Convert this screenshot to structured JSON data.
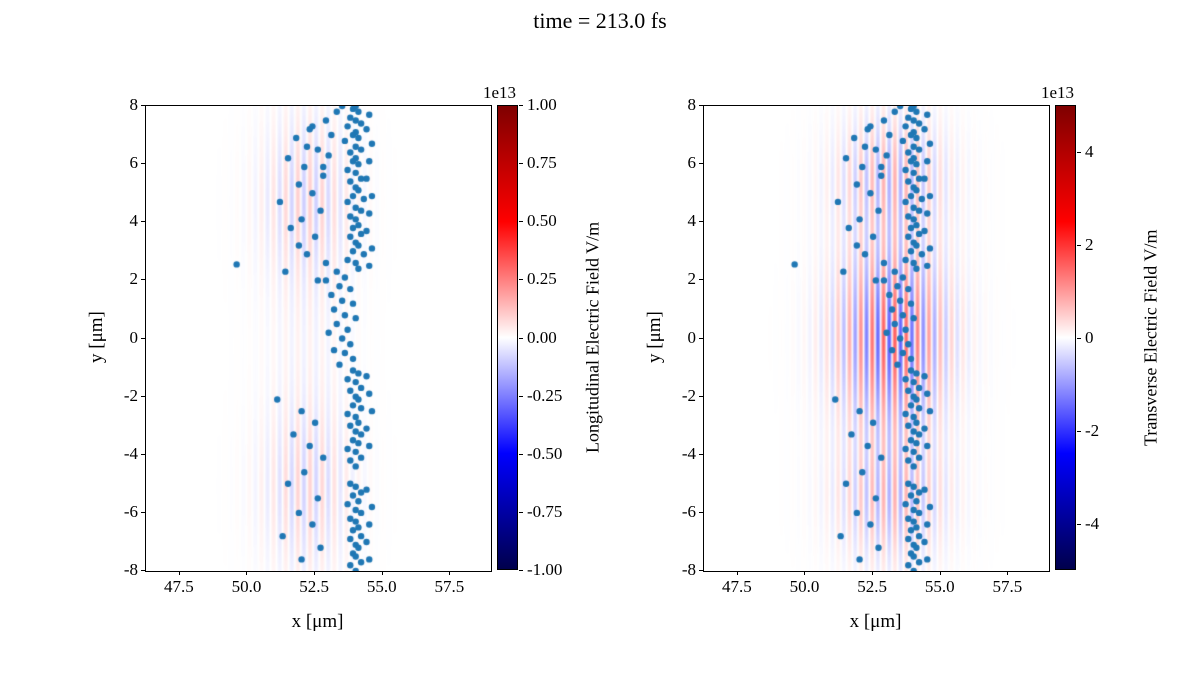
{
  "title": "time = 213.0 fs",
  "particle_color": "#1f77b4",
  "particles": [
    [
      53.9,
      7.9
    ],
    [
      54.1,
      7.8
    ],
    [
      53.8,
      7.6
    ],
    [
      54.0,
      7.5
    ],
    [
      54.2,
      7.4
    ],
    [
      53.7,
      7.3
    ],
    [
      54.0,
      7.1
    ],
    [
      53.9,
      7.0
    ],
    [
      54.1,
      6.9
    ],
    [
      53.6,
      6.8
    ],
    [
      54.0,
      6.6
    ],
    [
      54.2,
      6.5
    ],
    [
      53.8,
      6.4
    ],
    [
      54.0,
      6.2
    ],
    [
      53.9,
      6.1
    ],
    [
      54.1,
      6.0
    ],
    [
      53.7,
      5.8
    ],
    [
      54.0,
      5.7
    ],
    [
      54.2,
      5.5
    ],
    [
      53.8,
      5.4
    ],
    [
      54.0,
      5.2
    ],
    [
      54.1,
      5.1
    ],
    [
      53.9,
      4.9
    ],
    [
      54.3,
      4.8
    ],
    [
      53.7,
      4.7
    ],
    [
      54.0,
      4.5
    ],
    [
      54.2,
      4.4
    ],
    [
      53.8,
      4.2
    ],
    [
      54.0,
      4.1
    ],
    [
      54.1,
      3.9
    ],
    [
      53.9,
      3.8
    ],
    [
      54.2,
      3.6
    ],
    [
      53.8,
      3.5
    ],
    [
      54.0,
      3.3
    ],
    [
      54.1,
      3.2
    ],
    [
      53.9,
      3.0
    ],
    [
      54.3,
      2.9
    ],
    [
      53.7,
      2.7
    ],
    [
      54.0,
      2.6
    ],
    [
      54.1,
      2.4
    ],
    [
      53.3,
      2.3
    ],
    [
      53.6,
      2.1
    ],
    [
      52.9,
      2.0
    ],
    [
      53.4,
      1.8
    ],
    [
      53.8,
      1.7
    ],
    [
      53.1,
      1.5
    ],
    [
      53.5,
      1.3
    ],
    [
      53.9,
      1.2
    ],
    [
      53.2,
      1.0
    ],
    [
      53.6,
      0.8
    ],
    [
      54.0,
      0.7
    ],
    [
      53.3,
      0.5
    ],
    [
      53.7,
      0.3
    ],
    [
      53.0,
      0.2
    ],
    [
      53.5,
      0.0
    ],
    [
      53.8,
      -0.2
    ],
    [
      53.2,
      -0.4
    ],
    [
      53.6,
      -0.5
    ],
    [
      53.9,
      -0.7
    ],
    [
      53.4,
      -0.9
    ],
    [
      53.9,
      -1.1
    ],
    [
      54.1,
      -1.2
    ],
    [
      53.7,
      -1.4
    ],
    [
      54.0,
      -1.5
    ],
    [
      54.2,
      -1.7
    ],
    [
      53.8,
      -1.8
    ],
    [
      54.0,
      -2.0
    ],
    [
      54.1,
      -2.1
    ],
    [
      53.9,
      -2.3
    ],
    [
      54.2,
      -2.4
    ],
    [
      53.7,
      -2.6
    ],
    [
      54.0,
      -2.7
    ],
    [
      54.1,
      -2.9
    ],
    [
      53.8,
      -3.0
    ],
    [
      54.0,
      -3.2
    ],
    [
      54.2,
      -3.3
    ],
    [
      53.9,
      -3.5
    ],
    [
      54.1,
      -3.6
    ],
    [
      53.7,
      -3.8
    ],
    [
      54.0,
      -3.9
    ],
    [
      54.2,
      -4.1
    ],
    [
      53.8,
      -4.2
    ],
    [
      54.0,
      -4.4
    ],
    [
      53.8,
      -5.0
    ],
    [
      54.0,
      -5.1
    ],
    [
      54.2,
      -5.3
    ],
    [
      53.9,
      -5.4
    ],
    [
      54.1,
      -5.6
    ],
    [
      53.7,
      -5.7
    ],
    [
      54.0,
      -5.9
    ],
    [
      54.2,
      -6.0
    ],
    [
      53.8,
      -6.2
    ],
    [
      54.0,
      -6.3
    ],
    [
      54.1,
      -6.5
    ],
    [
      53.9,
      -6.6
    ],
    [
      54.2,
      -6.8
    ],
    [
      53.8,
      -6.9
    ],
    [
      54.0,
      -7.1
    ],
    [
      54.1,
      -7.2
    ],
    [
      53.9,
      -7.4
    ],
    [
      54.0,
      -7.5
    ],
    [
      54.2,
      -7.7
    ],
    [
      53.8,
      -7.8
    ],
    [
      54.0,
      -8.0
    ],
    [
      52.3,
      7.2
    ],
    [
      51.8,
      6.9
    ],
    [
      52.6,
      6.5
    ],
    [
      51.5,
      6.2
    ],
    [
      52.1,
      5.9
    ],
    [
      52.8,
      5.6
    ],
    [
      51.9,
      5.3
    ],
    [
      52.4,
      5.0
    ],
    [
      51.2,
      4.7
    ],
    [
      52.7,
      4.4
    ],
    [
      52.0,
      4.1
    ],
    [
      51.6,
      3.8
    ],
    [
      52.5,
      3.5
    ],
    [
      51.9,
      3.2
    ],
    [
      52.2,
      2.9
    ],
    [
      52.9,
      2.6
    ],
    [
      51.4,
      2.3
    ],
    [
      52.6,
      2.0
    ],
    [
      51.1,
      -2.1
    ],
    [
      52.0,
      -2.5
    ],
    [
      52.5,
      -2.9
    ],
    [
      51.7,
      -3.3
    ],
    [
      52.3,
      -3.7
    ],
    [
      52.8,
      -4.1
    ],
    [
      52.1,
      -4.6
    ],
    [
      51.5,
      -5.0
    ],
    [
      52.6,
      -5.5
    ],
    [
      51.9,
      -6.0
    ],
    [
      52.4,
      -6.4
    ],
    [
      51.3,
      -6.8
    ],
    [
      52.7,
      -7.2
    ],
    [
      52.0,
      -7.6
    ],
    [
      54.5,
      7.7
    ],
    [
      54.4,
      7.2
    ],
    [
      54.6,
      6.7
    ],
    [
      54.5,
      6.1
    ],
    [
      54.4,
      5.5
    ],
    [
      54.6,
      4.9
    ],
    [
      54.5,
      4.3
    ],
    [
      54.4,
      3.7
    ],
    [
      54.6,
      3.1
    ],
    [
      54.5,
      2.5
    ],
    [
      54.4,
      -1.3
    ],
    [
      54.5,
      -1.9
    ],
    [
      54.6,
      -2.5
    ],
    [
      54.4,
      -3.1
    ],
    [
      54.5,
      -3.7
    ],
    [
      54.4,
      -5.2
    ],
    [
      54.6,
      -5.8
    ],
    [
      54.5,
      -6.4
    ],
    [
      54.4,
      -7.0
    ],
    [
      54.5,
      -7.6
    ],
    [
      53.5,
      8.0
    ],
    [
      54.0,
      8.0
    ],
    [
      53.3,
      7.8
    ],
    [
      52.9,
      7.5
    ],
    [
      53.1,
      7.0
    ],
    [
      52.4,
      7.3
    ],
    [
      52.2,
      6.6
    ],
    [
      53.0,
      6.3
    ],
    [
      52.8,
      5.9
    ],
    [
      49.6,
      2.55
    ]
  ],
  "chart_data": [
    {
      "type": "heatmap",
      "subtype": "field-with-particle-scatter",
      "xlabel": "x [μm]",
      "ylabel": "y [μm]",
      "xlim": [
        46.25,
        59.0
      ],
      "ylim": [
        -8,
        8
      ],
      "xticks": [
        "47.5",
        "50.0",
        "52.5",
        "55.0",
        "57.5"
      ],
      "yticks": [
        "8",
        "6",
        "4",
        "2",
        "0",
        "-2",
        "-4",
        "-6",
        "-8"
      ],
      "grid": false,
      "scatter": {
        "color": "#1f77b4",
        "marker_radius_px": 3.2
      },
      "field": {
        "wavelength": 0.45,
        "x_center": 52.2,
        "x_sigma": 1.6,
        "amplitude": 0.16,
        "lobes": [
          {
            "y": 4.8,
            "sigma": 2.6,
            "weight": 1.0
          },
          {
            "y": -5.2,
            "sigma": 2.6,
            "weight": 0.9
          },
          {
            "y": 0.0,
            "sigma": 8.0,
            "weight": 0.3
          }
        ]
      },
      "colorbar": {
        "label": "Longitudinal Electric Field V/m",
        "offset_label": "1e13",
        "vmin": -1.0,
        "vmax": 1.0,
        "ticks": [
          "1.00",
          "0.75",
          "0.50",
          "0.25",
          "0.00",
          "-0.25",
          "-0.50",
          "-0.75",
          "-1.00"
        ],
        "gradient": [
          "#7f0000",
          "#ff0000",
          "#ffffff",
          "#0000ff",
          "#00004c"
        ]
      }
    },
    {
      "type": "heatmap",
      "subtype": "field-with-particle-scatter",
      "xlabel": "x [μm]",
      "ylabel": "y [μm]",
      "xlim": [
        46.25,
        59.0
      ],
      "ylim": [
        -8,
        8
      ],
      "xticks": [
        "47.5",
        "50.0",
        "52.5",
        "55.0",
        "57.5"
      ],
      "yticks": [
        "8",
        "6",
        "4",
        "2",
        "0",
        "-2",
        "-4",
        "-6",
        "-8"
      ],
      "grid": false,
      "scatter": {
        "color": "#1f77b4",
        "marker_radius_px": 3.2
      },
      "field": {
        "wavelength": 0.42,
        "x_center": 53.2,
        "x_sigma": 1.9,
        "amplitude": 0.55,
        "lobes": [
          {
            "y": 0.0,
            "sigma": 2.8,
            "weight": 1.0
          },
          {
            "y": 5.5,
            "sigma": 1.9,
            "weight": 0.45
          },
          {
            "y": -5.5,
            "sigma": 1.9,
            "weight": 0.45
          },
          {
            "y": 0.0,
            "sigma": 8.0,
            "weight": 0.15
          }
        ]
      },
      "colorbar": {
        "label": "Transverse Electric Field V/m",
        "offset_label": "1e13",
        "vmin": -5.0,
        "vmax": 5.0,
        "ticks": [
          "4",
          "2",
          "0",
          "-2",
          "-4"
        ],
        "gradient": [
          "#7f0000",
          "#ff0000",
          "#ffffff",
          "#0000ff",
          "#00004c"
        ]
      }
    }
  ]
}
